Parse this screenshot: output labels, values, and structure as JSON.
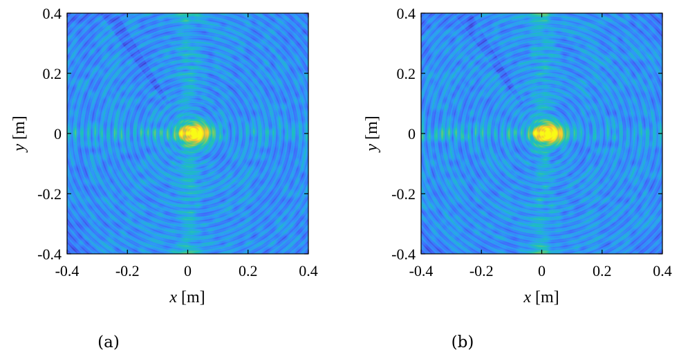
{
  "chart_data": [
    {
      "type": "heatmap",
      "panel_label": "(a)",
      "xlabel_var": "x",
      "xlabel_unit": " [m]",
      "ylabel_var": "y",
      "ylabel_unit": " [m]",
      "xlim": [
        -0.4,
        0.4
      ],
      "ylim": [
        -0.4,
        0.4
      ],
      "xticks": [
        -0.4,
        -0.2,
        0,
        0.2,
        0.4
      ],
      "yticks": [
        -0.4,
        -0.2,
        0,
        0.2,
        0.4
      ],
      "xtick_labels": [
        "-0.4",
        "-0.2",
        "0",
        "0.2",
        "0.4"
      ],
      "ytick_labels": [
        "-0.4",
        "-0.2",
        "0",
        "0.2",
        "0.4"
      ],
      "focus": [
        0.0,
        0.0
      ],
      "colormap": [
        "#3e26a8",
        "#4367fd",
        "#2d9ff6",
        "#1bc2b9",
        "#7ecd62",
        "#f4bc38",
        "#f9fb15"
      ]
    },
    {
      "type": "heatmap",
      "panel_label": "(b)",
      "xlabel_var": "x",
      "xlabel_unit": " [m]",
      "ylabel_var": "y",
      "ylabel_unit": " [m]",
      "xlim": [
        -0.4,
        0.4
      ],
      "ylim": [
        -0.4,
        0.4
      ],
      "xticks": [
        -0.4,
        -0.2,
        0,
        0.2,
        0.4
      ],
      "yticks": [
        -0.4,
        -0.2,
        0,
        0.2,
        0.4
      ],
      "xtick_labels": [
        "-0.4",
        "-0.2",
        "0",
        "0.2",
        "0.4"
      ],
      "ytick_labels": [
        "-0.4",
        "-0.2",
        "0",
        "0.2",
        "0.4"
      ],
      "focus": [
        0.0,
        0.0
      ],
      "colormap": [
        "#3e26a8",
        "#4367fd",
        "#2d9ff6",
        "#1bc2b9",
        "#7ecd62",
        "#f4bc38",
        "#f9fb15"
      ]
    }
  ]
}
